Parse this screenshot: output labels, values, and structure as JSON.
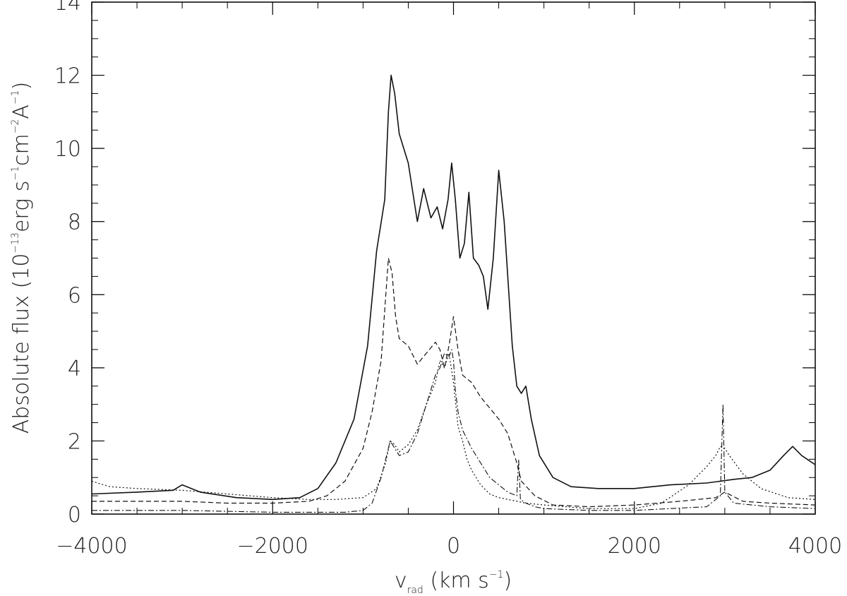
{
  "chart_data": {
    "type": "line",
    "title": "",
    "xlabel": {
      "main": "v",
      "sub": "rad",
      "rest": " (km s",
      "sup": "−1",
      "close": ")"
    },
    "ylabel": {
      "pre": "Absolute flux (10",
      "sup1": "−13",
      "mid": "erg s",
      "sup2": "−1",
      "mid2": "cm",
      "sup3": "−2",
      "mid3": "A",
      "sup4": "−1",
      "close": ")"
    },
    "xlim": [
      -4000,
      4000
    ],
    "ylim": [
      0,
      14
    ],
    "xticks": [
      -4000,
      -2000,
      0,
      2000,
      4000
    ],
    "xtick_labels": [
      "−4000",
      "−2000",
      "0",
      "2000",
      "4000"
    ],
    "yticks": [
      0,
      2,
      4,
      6,
      8,
      10,
      12,
      14
    ],
    "ytick_labels": [
      "0",
      "2",
      "4",
      "6",
      "8",
      "10",
      "12",
      "14"
    ],
    "grid": false,
    "series": [
      {
        "style": "solid",
        "x": [
          -4000,
          -3500,
          -3100,
          -3000,
          -2800,
          -2400,
          -2000,
          -1700,
          -1500,
          -1300,
          -1100,
          -950,
          -850,
          -760,
          -720,
          -690,
          -650,
          -600,
          -500,
          -400,
          -330,
          -250,
          -180,
          -120,
          -60,
          -20,
          20,
          70,
          120,
          170,
          220,
          280,
          330,
          380,
          440,
          500,
          560,
          650,
          700,
          750,
          800,
          860,
          950,
          1100,
          1300,
          1600,
          2000,
          2400,
          2800,
          3100,
          3300,
          3500,
          3650,
          3750,
          3850,
          4000
        ],
        "values": [
          0.55,
          0.6,
          0.65,
          0.8,
          0.6,
          0.45,
          0.4,
          0.45,
          0.7,
          1.4,
          2.6,
          4.6,
          7.2,
          8.6,
          11.0,
          12.0,
          11.5,
          10.4,
          9.6,
          8.0,
          8.9,
          8.1,
          8.4,
          7.8,
          8.6,
          9.6,
          8.6,
          7.0,
          7.4,
          8.8,
          7.0,
          6.8,
          6.5,
          5.6,
          7.0,
          9.4,
          8.0,
          4.6,
          3.5,
          3.3,
          3.5,
          2.6,
          1.6,
          1.0,
          0.75,
          0.7,
          0.7,
          0.8,
          0.85,
          0.95,
          1.0,
          1.2,
          1.6,
          1.85,
          1.6,
          1.35
        ]
      },
      {
        "style": "dashed",
        "x": [
          -4000,
          -3500,
          -3000,
          -2500,
          -2000,
          -1600,
          -1400,
          -1200,
          -1000,
          -900,
          -800,
          -720,
          -680,
          -640,
          -600,
          -500,
          -400,
          -300,
          -200,
          -150,
          -100,
          -50,
          0,
          50,
          100,
          200,
          300,
          400,
          500,
          600,
          700,
          750,
          900,
          1100,
          1500,
          2000,
          2500,
          2900,
          3000,
          3200,
          3500,
          4000
        ],
        "values": [
          0.35,
          0.35,
          0.35,
          0.3,
          0.3,
          0.35,
          0.5,
          0.9,
          1.8,
          2.8,
          4.2,
          7.0,
          6.6,
          5.4,
          4.8,
          4.6,
          4.1,
          4.4,
          4.7,
          4.5,
          4.0,
          4.6,
          5.4,
          4.5,
          3.8,
          3.6,
          3.2,
          2.9,
          2.6,
          2.2,
          1.4,
          0.9,
          0.5,
          0.25,
          0.2,
          0.25,
          0.35,
          0.45,
          0.6,
          0.35,
          0.3,
          0.25
        ]
      },
      {
        "style": "dotted",
        "x": [
          -4000,
          -3800,
          -3500,
          -3000,
          -2500,
          -2000,
          -1600,
          -1300,
          -1000,
          -850,
          -750,
          -700,
          -650,
          -600,
          -500,
          -400,
          -300,
          -200,
          -150,
          -100,
          -50,
          0,
          50,
          100,
          150,
          200,
          250,
          300,
          400,
          500,
          600,
          700,
          800,
          1000,
          1500,
          2000,
          2300,
          2600,
          2800,
          2900,
          2950,
          3000,
          3050,
          3200,
          3400,
          3700,
          4000
        ],
        "values": [
          0.9,
          0.75,
          0.7,
          0.65,
          0.55,
          0.45,
          0.4,
          0.4,
          0.45,
          0.7,
          1.4,
          2.0,
          1.9,
          1.7,
          1.9,
          2.3,
          3.0,
          3.6,
          4.2,
          4.0,
          4.4,
          3.6,
          2.4,
          2.0,
          1.5,
          1.2,
          1.0,
          0.8,
          0.55,
          0.45,
          0.4,
          0.35,
          0.3,
          0.25,
          0.15,
          0.15,
          0.3,
          0.8,
          1.3,
          1.6,
          1.85,
          1.8,
          1.6,
          1.1,
          0.7,
          0.45,
          0.4
        ]
      },
      {
        "style": "dashdot",
        "x": [
          -4000,
          -3000,
          -2000,
          -1500,
          -1200,
          -1000,
          -900,
          -800,
          -700,
          -650,
          -600,
          -500,
          -400,
          -300,
          -200,
          -150,
          -100,
          -50,
          -20,
          0,
          20,
          50,
          100,
          200,
          300,
          400,
          500,
          600,
          700,
          720,
          740,
          800,
          900,
          1000,
          1500,
          2000,
          2400,
          2800,
          2950,
          2980,
          3000,
          3100,
          3500,
          4000
        ],
        "values": [
          0.1,
          0.1,
          0.05,
          0.05,
          0.05,
          0.1,
          0.3,
          1.0,
          2.0,
          1.8,
          1.6,
          1.7,
          2.2,
          3.0,
          3.8,
          4.0,
          4.4,
          4.3,
          4.5,
          4.2,
          3.4,
          2.8,
          2.3,
          1.8,
          1.4,
          1.0,
          0.8,
          0.6,
          0.5,
          1.5,
          0.4,
          0.3,
          0.2,
          0.15,
          0.1,
          0.1,
          0.15,
          0.2,
          0.5,
          3.0,
          0.6,
          0.3,
          0.2,
          0.15
        ]
      }
    ]
  }
}
